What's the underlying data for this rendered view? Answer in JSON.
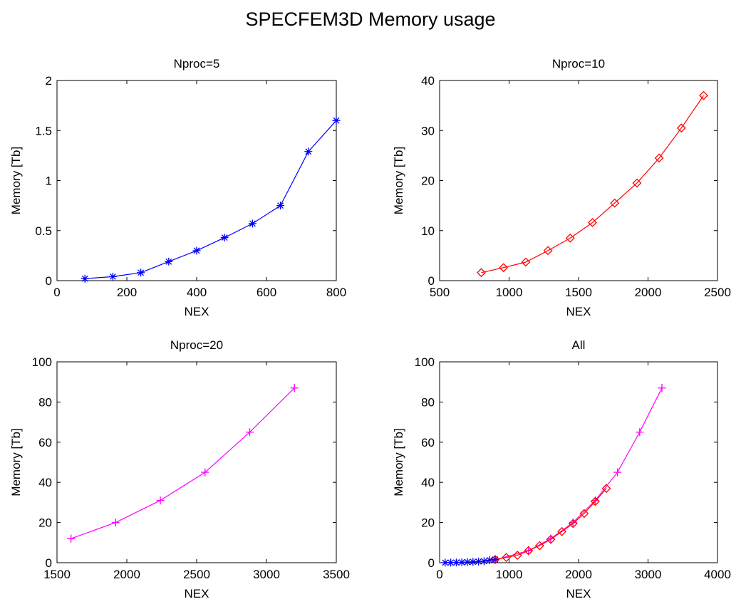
{
  "figure": {
    "title": "SPECFEM3D Memory usage"
  },
  "chart_data": [
    {
      "type": "line",
      "title": "Nproc=5",
      "xlabel": "NEX",
      "ylabel": "Memory [Tb]",
      "xlim": [
        0,
        800
      ],
      "ylim": [
        0,
        2
      ],
      "xticks": [
        "0",
        "200",
        "400",
        "600",
        "800"
      ],
      "yticks": [
        "0",
        "0.5",
        "1",
        "1.5",
        "2"
      ],
      "grid": false,
      "series": [
        {
          "color": "#0000ff",
          "marker": "asterisk",
          "x": [
            80,
            160,
            240,
            320,
            400,
            480,
            560,
            640,
            720,
            800
          ],
          "y": [
            0.02,
            0.04,
            0.08,
            0.19,
            0.3,
            0.43,
            0.57,
            0.75,
            1.29,
            1.6
          ]
        }
      ]
    },
    {
      "type": "line",
      "title": "Nproc=10",
      "xlabel": "NEX",
      "ylabel": "Memory [Tb]",
      "xlim": [
        500,
        2500
      ],
      "ylim": [
        0,
        40
      ],
      "xticks": [
        "500",
        "1000",
        "1500",
        "2000",
        "2500"
      ],
      "yticks": [
        "0",
        "10",
        "20",
        "30",
        "40"
      ],
      "grid": false,
      "series": [
        {
          "color": "#ff0000",
          "marker": "diamond",
          "x": [
            800,
            960,
            1120,
            1280,
            1440,
            1600,
            1760,
            1920,
            2080,
            2240,
            2400
          ],
          "y": [
            1.6,
            2.6,
            3.7,
            6.0,
            8.5,
            11.6,
            15.5,
            19.5,
            24.5,
            30.5,
            37.0
          ]
        }
      ]
    },
    {
      "type": "line",
      "title": "Nproc=20",
      "xlabel": "NEX",
      "ylabel": "Memory [Tb]",
      "xlim": [
        1500,
        3500
      ],
      "ylim": [
        0,
        100
      ],
      "xticks": [
        "1500",
        "2000",
        "2500",
        "3000",
        "3500"
      ],
      "yticks": [
        "0",
        "20",
        "40",
        "60",
        "80",
        "100"
      ],
      "grid": false,
      "series": [
        {
          "color": "#ff00ff",
          "marker": "plus",
          "x": [
            1600,
            1920,
            2240,
            2560,
            2880,
            3200
          ],
          "y": [
            12,
            20,
            31,
            45,
            65,
            87
          ]
        }
      ]
    },
    {
      "type": "line",
      "title": "All",
      "xlabel": "NEX",
      "ylabel": "Memory [Tb]",
      "xlim": [
        0,
        4000
      ],
      "ylim": [
        0,
        100
      ],
      "xticks": [
        "0",
        "1000",
        "2000",
        "3000",
        "4000"
      ],
      "yticks": [
        "0",
        "20",
        "40",
        "60",
        "80",
        "100"
      ],
      "grid": false,
      "series": [
        {
          "color": "#ff00ff",
          "marker": "plus",
          "x": [
            800,
            1280,
            1600,
            1920,
            2240,
            2560,
            2880,
            3200
          ],
          "y": [
            1.5,
            6,
            12,
            20,
            31,
            45,
            65,
            87
          ]
        },
        {
          "color": "#ff0000",
          "marker": "diamond",
          "x": [
            800,
            960,
            1120,
            1280,
            1440,
            1600,
            1760,
            1920,
            2080,
            2240,
            2400
          ],
          "y": [
            1.6,
            2.6,
            3.7,
            6.0,
            8.5,
            11.6,
            15.5,
            19.5,
            24.5,
            30.5,
            37.0
          ]
        },
        {
          "color": "#0000ff",
          "marker": "asterisk",
          "x": [
            80,
            160,
            240,
            320,
            400,
            480,
            560,
            640,
            720,
            800
          ],
          "y": [
            0.02,
            0.04,
            0.08,
            0.19,
            0.3,
            0.43,
            0.57,
            0.75,
            1.29,
            1.6
          ]
        }
      ]
    }
  ]
}
